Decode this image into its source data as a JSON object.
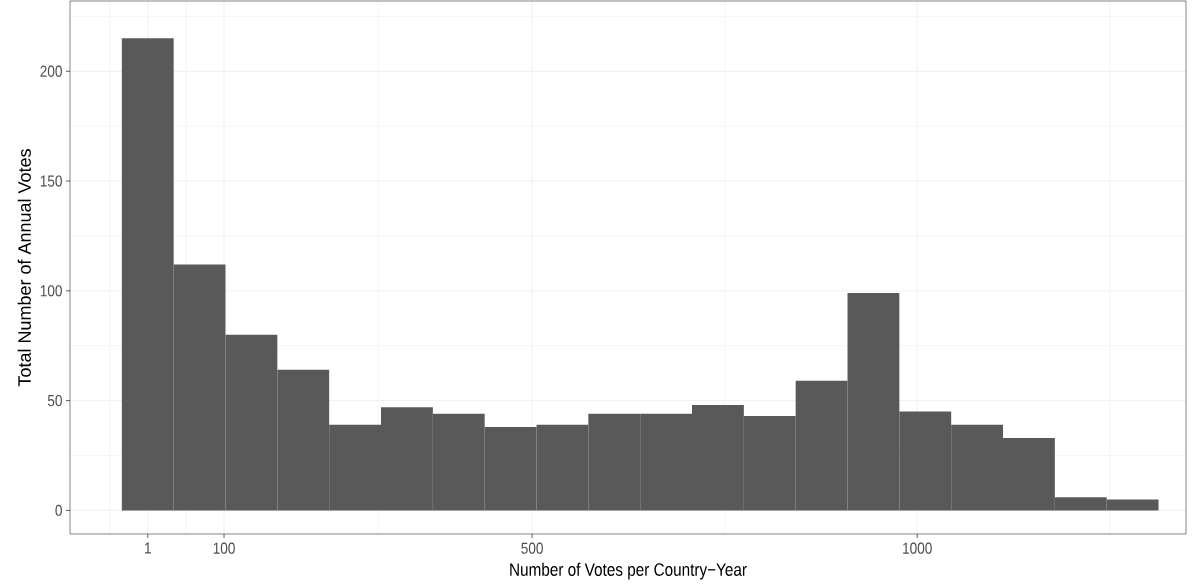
{
  "chart_data": {
    "type": "histogram",
    "xlabel": "Number of Votes per Country−Year",
    "ylabel": "Total Number of Annual Votes",
    "bins": [
      -32.7,
      34.6,
      101.9,
      169.2,
      236.5,
      303.8,
      371.1,
      438.4,
      505.7,
      573.0,
      640.3,
      707.6,
      774.9,
      842.2,
      909.5,
      976.8,
      1044.1,
      1111.4,
      1178.7,
      1246.0,
      1313.3
    ],
    "values": [
      215,
      112,
      80,
      64,
      39,
      47,
      44,
      38,
      39,
      44,
      44,
      48,
      43,
      59,
      99,
      45,
      39,
      33,
      6,
      5
    ],
    "color": "#595959",
    "xlim": [
      -100,
      1349
    ],
    "ylim": [
      -10.75,
      232
    ],
    "xticks": [
      1,
      100,
      500,
      1000
    ],
    "yticks": [
      0,
      50,
      100,
      150,
      200
    ],
    "grid": true
  }
}
